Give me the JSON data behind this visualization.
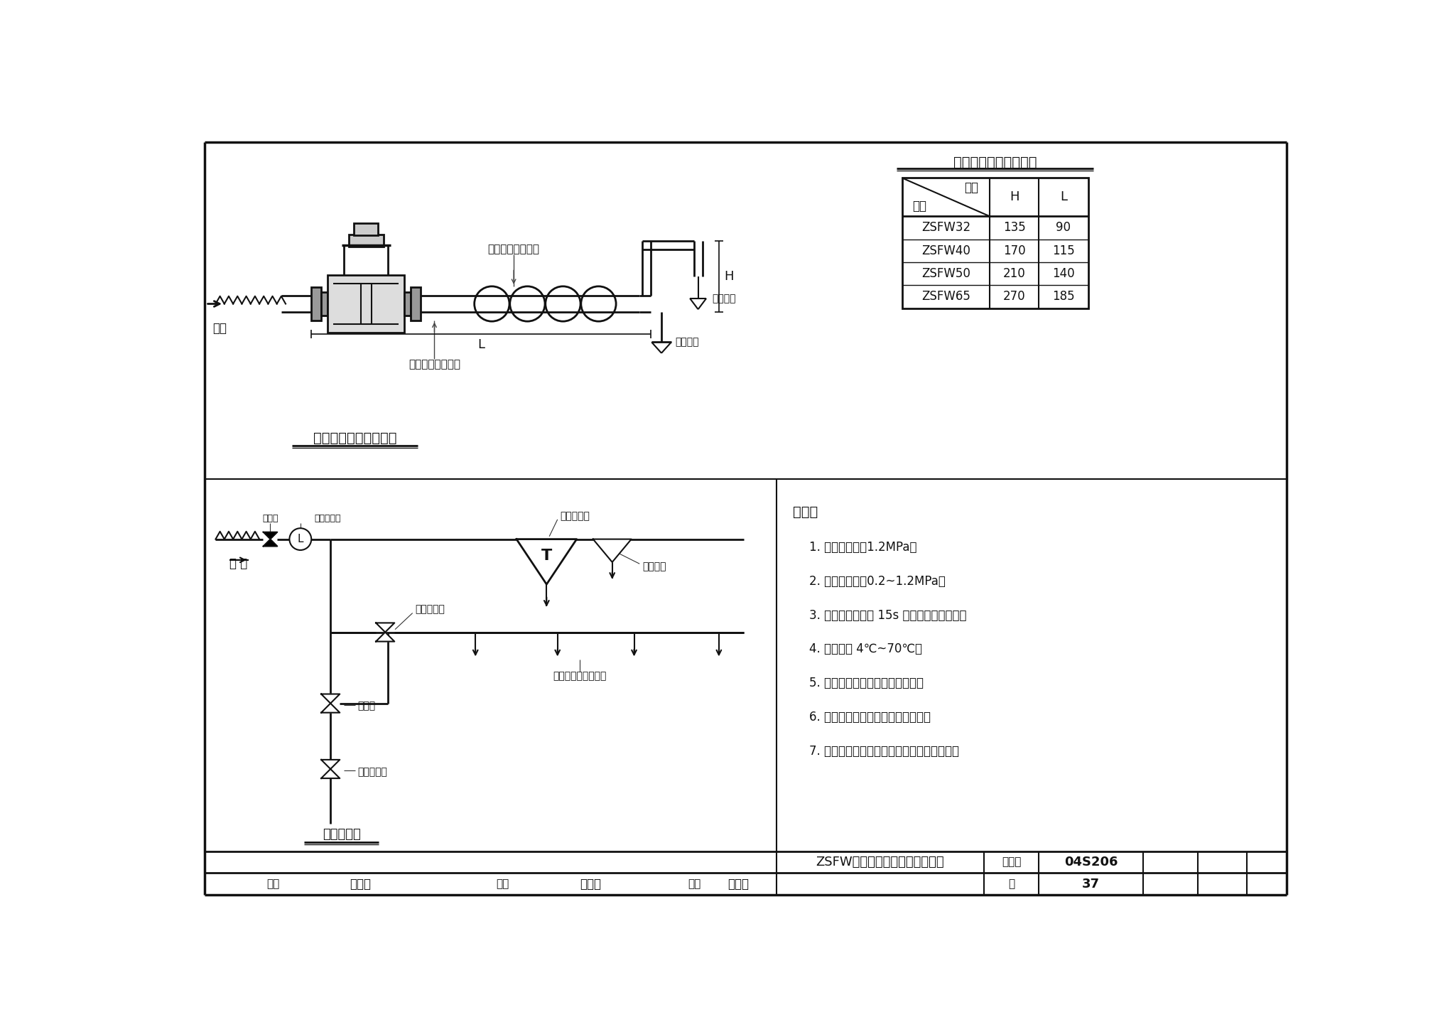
{
  "bg_color": "#ffffff",
  "line_color": "#111111",
  "title_table": "感温释放阀安装尺寸表",
  "diagram1_title": "感温释放阀安装示意图",
  "diagram2_title": "系统示意图",
  "label_jinshui_top": "进水",
  "label_shuiwu_zhitou": "水幕喷头配水支管",
  "label_shoudong": "手动开启阀来水管",
  "label_shuiwu": "水幕喷头",
  "label_bieshi": "闭式喷头",
  "label_xinhao": "信号阀",
  "label_shuiliuzs": "水流指示器",
  "label_jiesheng": "感温释放阀",
  "label_bishizt": "闭式喷头",
  "label_shiyanjhf": "试验信号阀",
  "label_shuiwnzt": "水幕喷头或开式喷头",
  "label_shiyanj": "试验阀",
  "label_shoudongqkf": "手动开启阀",
  "label_jinshui_bot": "进 水",
  "notes_title": "说明：",
  "notes": [
    "1. 额定工作压力1.2MPa。",
    "2. 工作压力范围0.2~1.2MPa。",
    "3. 闭式喷头动作后 15s 内感温释放阀开启。",
    "4. 使用温度 4℃~70℃。",
    "5. 本产品一般安装在配水干管上。",
    "6. 水幕喷头安装应指向被保护对象。",
    "7. 喷头与被保护对象的距离由喷头型号确定。"
  ],
  "table_rows": [
    [
      "ZSFW32",
      "135",
      "90"
    ],
    [
      "ZSFW40",
      "170",
      "115"
    ],
    [
      "ZSFW50",
      "210",
      "140"
    ],
    [
      "ZSFW65",
      "270",
      "185"
    ]
  ],
  "footer_main": "ZSFW系列感温释放阀安装示意图",
  "footer_tujihao": "图集号",
  "footer_tujihao_val": "04S206",
  "footer_shenhe": "审核",
  "footer_shenhe_val": "乙州沖",
  "footer_jiaodui": "校对",
  "footer_jiaodui_val": "吕佰钢",
  "footer_sheji": "设计",
  "footer_sheji_val": "肉腾旬",
  "footer_ye": "页",
  "footer_ye_val": "37"
}
